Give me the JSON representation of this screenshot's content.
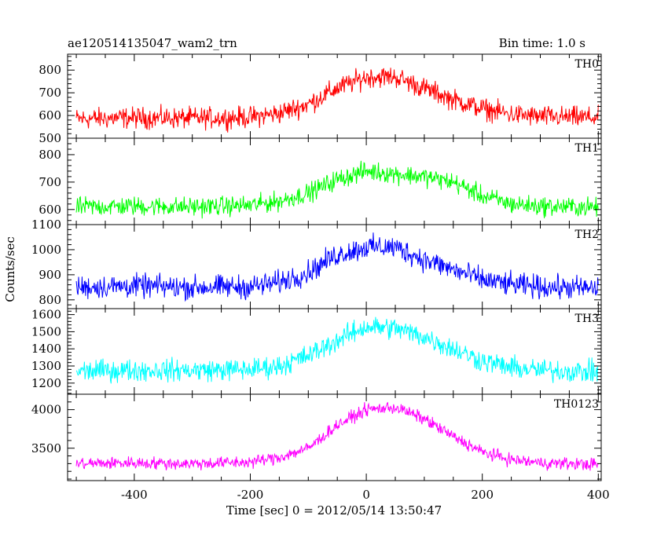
{
  "chart_data": {
    "type": "line",
    "title": "ae120514135047_wam2_trn",
    "subtitle": "Bin time: 1.0 s",
    "xlabel": "Time [sec] 0 = 2012/05/14 13:50:47",
    "ylabel": "Counts/sec",
    "xlim": [
      -515,
      405
    ],
    "xticks": [
      -400,
      -200,
      0,
      200,
      400
    ],
    "grid": false,
    "legend": "none",
    "series": [
      {
        "name": "TH0",
        "color": "#ff0000",
        "ylim": [
          500,
          870
        ],
        "yticks": [
          500,
          600,
          700,
          800
        ],
        "x": [
          -500,
          -400,
          -300,
          -200,
          -150,
          -100,
          -50,
          0,
          50,
          100,
          150,
          200,
          250,
          300,
          400
        ],
        "values": [
          585,
          590,
          588,
          592,
          610,
          650,
          720,
          770,
          770,
          720,
          670,
          630,
          605,
          595,
          590
        ],
        "noise": 40
      },
      {
        "name": "TH1",
        "color": "#00ff00",
        "ylim": [
          545,
          860
        ],
        "yticks": [
          600,
          700,
          800
        ],
        "x": [
          -500,
          -400,
          -300,
          -200,
          -150,
          -100,
          -50,
          0,
          50,
          100,
          150,
          200,
          250,
          300,
          400
        ],
        "values": [
          610,
          612,
          610,
          615,
          630,
          660,
          710,
          740,
          730,
          720,
          700,
          650,
          620,
          612,
          608
        ],
        "noise": 30
      },
      {
        "name": "TH2",
        "color": "#0000ff",
        "ylim": [
          765,
          1100
        ],
        "yticks": [
          800,
          900,
          1000,
          1100
        ],
        "x": [
          -500,
          -400,
          -300,
          -200,
          -150,
          -100,
          -50,
          0,
          50,
          100,
          150,
          200,
          250,
          300,
          400
        ],
        "values": [
          850,
          855,
          850,
          852,
          870,
          910,
          980,
          1010,
          1010,
          960,
          920,
          880,
          860,
          852,
          845
        ],
        "noise": 40
      },
      {
        "name": "TH3",
        "color": "#00ffff",
        "ylim": [
          1135,
          1635
        ],
        "yticks": [
          1200,
          1300,
          1400,
          1500,
          1600
        ],
        "x": [
          -500,
          -400,
          -300,
          -200,
          -150,
          -100,
          -50,
          0,
          50,
          100,
          150,
          200,
          250,
          300,
          400
        ],
        "values": [
          1270,
          1275,
          1275,
          1280,
          1300,
          1360,
          1450,
          1530,
          1520,
          1470,
          1400,
          1330,
          1290,
          1275,
          1265
        ],
        "noise": 55
      },
      {
        "name": "TH0123",
        "color": "#ff00ff",
        "ylim": [
          3080,
          4200
        ],
        "yticks": [
          3500,
          4000
        ],
        "x": [
          -500,
          -400,
          -300,
          -200,
          -150,
          -100,
          -50,
          0,
          50,
          100,
          150,
          200,
          250,
          300,
          400
        ],
        "values": [
          3300,
          3310,
          3300,
          3320,
          3380,
          3500,
          3800,
          4000,
          4030,
          3880,
          3650,
          3450,
          3350,
          3310,
          3290
        ],
        "noise": 70
      }
    ]
  }
}
